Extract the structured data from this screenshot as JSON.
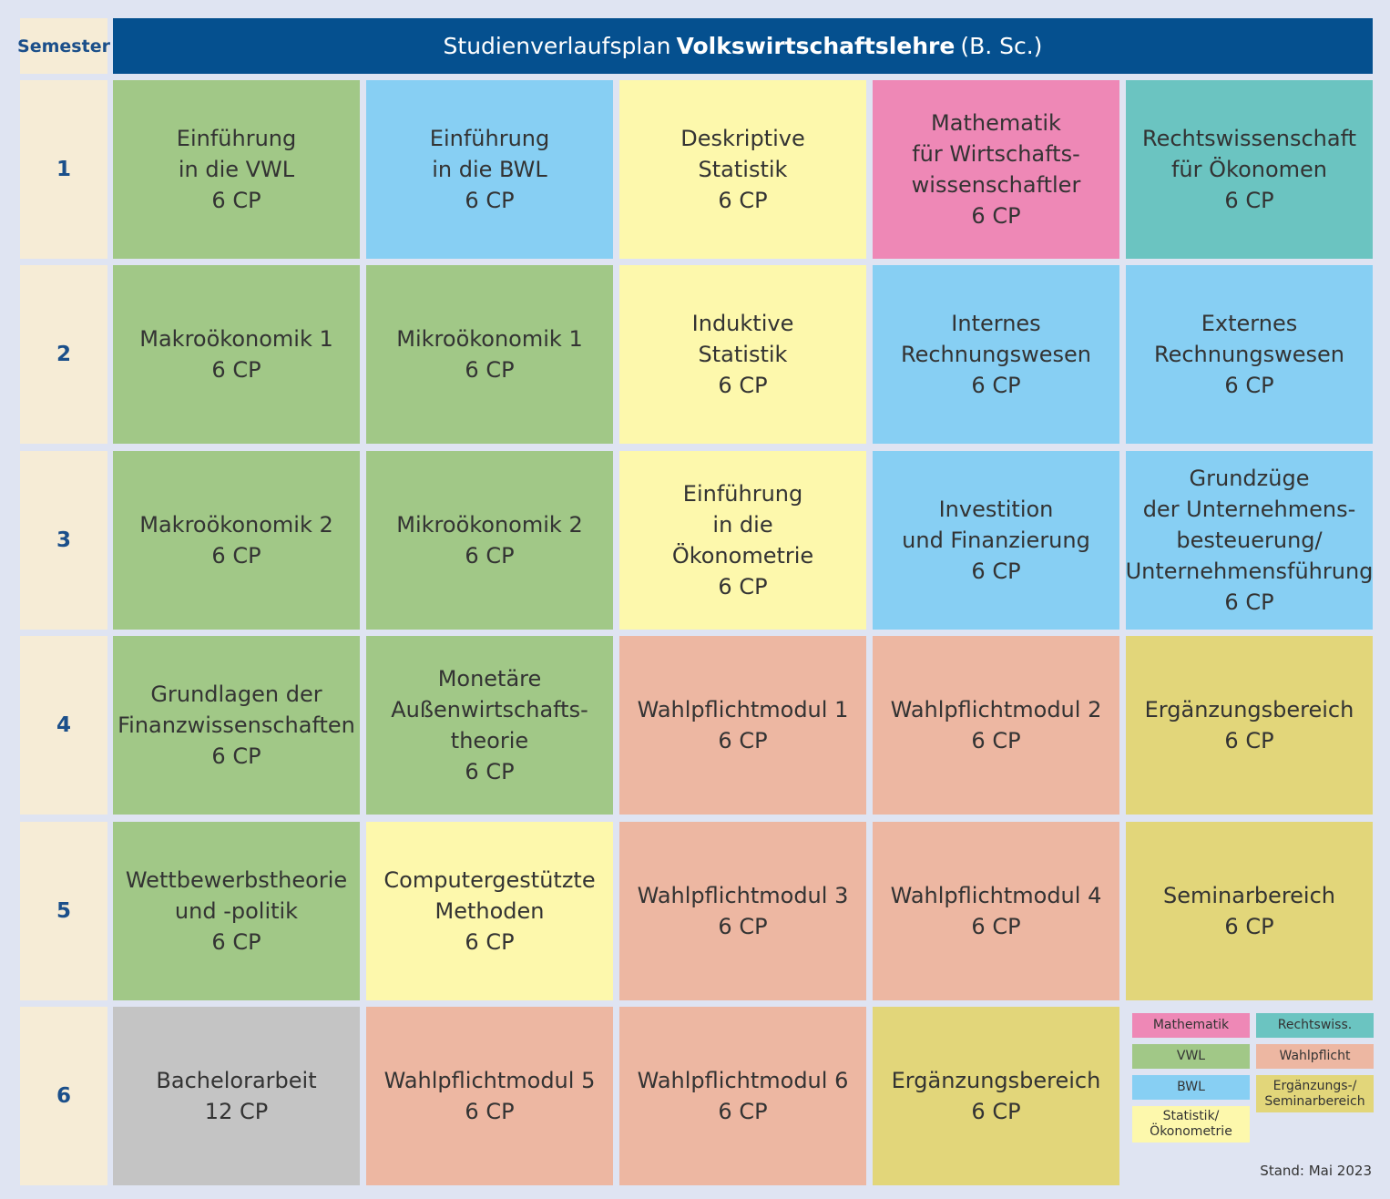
{
  "header": {
    "semester_label": "Semester",
    "title_prefix": "Studienverlaufsplan",
    "title_bold": "Volkswirtschaftslehre",
    "title_suffix": "(B. Sc.)"
  },
  "semesters": [
    "1",
    "2",
    "3",
    "4",
    "5",
    "6"
  ],
  "rows": [
    [
      {
        "name": "Einführung\nin die VWL",
        "cp": "6 CP",
        "category": "vwl"
      },
      {
        "name": "Einführung\nin die BWL",
        "cp": "6 CP",
        "category": "bwl"
      },
      {
        "name": "Deskriptive\nStatistik",
        "cp": "6 CP",
        "category": "statistik"
      },
      {
        "name": "Mathematik\nfür Wirtschafts-\nwissenschaftler",
        "cp": "6 CP",
        "category": "mathematik"
      },
      {
        "name": "Rechtswissenschaft\nfür Ökonomen",
        "cp": "6 CP",
        "category": "rechtswiss"
      }
    ],
    [
      {
        "name": "Makroökonomik 1",
        "cp": "6 CP",
        "category": "vwl"
      },
      {
        "name": "Mikroökonomik 1",
        "cp": "6 CP",
        "category": "vwl"
      },
      {
        "name": "Induktive\nStatistik",
        "cp": "6 CP",
        "category": "statistik"
      },
      {
        "name": "Internes\nRechnungswesen",
        "cp": "6 CP",
        "category": "bwl"
      },
      {
        "name": "Externes\nRechnungswesen",
        "cp": "6 CP",
        "category": "bwl"
      }
    ],
    [
      {
        "name": "Makroökonomik 2",
        "cp": "6 CP",
        "category": "vwl"
      },
      {
        "name": "Mikroökonomik 2",
        "cp": "6 CP",
        "category": "vwl"
      },
      {
        "name": "Einführung\nin die\nÖkonometrie",
        "cp": "6 CP",
        "category": "statistik"
      },
      {
        "name": "Investition\nund Finanzierung",
        "cp": "6 CP",
        "category": "bwl"
      },
      {
        "name": "Grundzüge\nder Unternehmens-\nbesteuerung/\nUnternehmensführung",
        "cp": "6 CP",
        "category": "bwl"
      }
    ],
    [
      {
        "name": "Grundlagen der\nFinanzwissenschaften",
        "cp": "6 CP",
        "category": "vwl"
      },
      {
        "name": "Monetäre\nAußenwirtschafts-\ntheorie",
        "cp": "6 CP",
        "category": "vwl"
      },
      {
        "name": "Wahlpflichtmodul 1",
        "cp": "6 CP",
        "category": "wahlpflicht"
      },
      {
        "name": "Wahlpflichtmodul 2",
        "cp": "6 CP",
        "category": "wahlpflicht"
      },
      {
        "name": "Ergänzungsbereich",
        "cp": "6 CP",
        "category": "ergaenzung"
      }
    ],
    [
      {
        "name": "Wettbewerbstheorie\nund -politik",
        "cp": "6 CP",
        "category": "vwl"
      },
      {
        "name": "Computergestützte\nMethoden",
        "cp": "6 CP",
        "category": "statistik"
      },
      {
        "name": "Wahlpflichtmodul 3",
        "cp": "6 CP",
        "category": "wahlpflicht"
      },
      {
        "name": "Wahlpflichtmodul 4",
        "cp": "6 CP",
        "category": "wahlpflicht"
      },
      {
        "name": "Seminarbereich",
        "cp": "6 CP",
        "category": "ergaenzung"
      }
    ],
    [
      {
        "name": "Bachelorarbeit",
        "cp": "12 CP",
        "category": "bachelor"
      },
      {
        "name": "Wahlpflichtmodul 5",
        "cp": "6 CP",
        "category": "wahlpflicht"
      },
      {
        "name": "Wahlpflichtmodul 6",
        "cp": "6 CP",
        "category": "wahlpflicht"
      },
      {
        "name": "Ergänzungsbereich",
        "cp": "6 CP",
        "category": "ergaenzung"
      }
    ]
  ],
  "legend": [
    {
      "label": "Mathematik",
      "category": "mathematik"
    },
    {
      "label": "Rechtswiss.",
      "category": "rechtswiss"
    },
    {
      "label": "VWL",
      "category": "vwl"
    },
    {
      "label": "Wahlpflicht",
      "category": "wahlpflicht"
    },
    {
      "label": "BWL",
      "category": "bwl"
    },
    {
      "label": "Ergänzungs-/\nSeminarbereich",
      "category": "ergaenzung"
    },
    {
      "label": "Statistik/\nÖkonometrie",
      "category": "statistik"
    }
  ],
  "colors": {
    "vwl": "#a1c887",
    "bwl": "#87cff3",
    "statistik": "#fdf8ac",
    "mathematik": "#ee88b6",
    "rechtswiss": "#6bc4c1",
    "wahlpflicht": "#edb7a2",
    "ergaenzung": "#e2d67a",
    "bachelor": "#c4c4c4",
    "header": "#05508f",
    "semester": "#f6ecd6"
  },
  "footer": {
    "stand": "Stand: Mai 2023"
  }
}
